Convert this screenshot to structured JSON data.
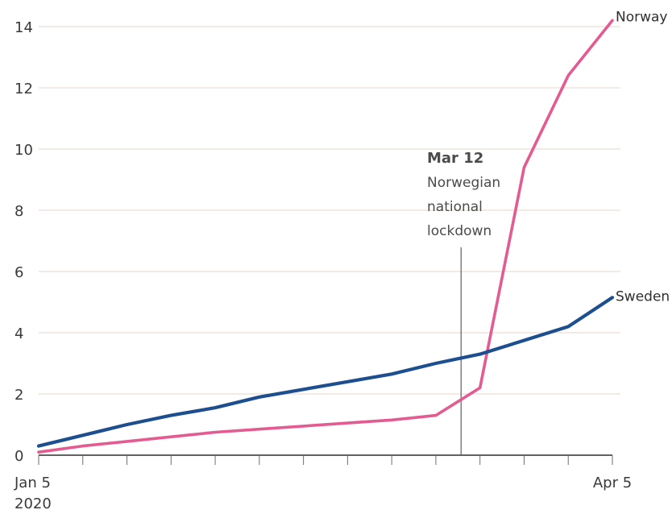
{
  "chart_data": {
    "type": "line",
    "x": [
      "2020-01-05",
      "2020-01-12",
      "2020-01-19",
      "2020-01-26",
      "2020-02-02",
      "2020-02-09",
      "2020-02-16",
      "2020-02-23",
      "2020-03-01",
      "2020-03-08",
      "2020-03-15",
      "2020-03-22",
      "2020-03-29",
      "2020-04-05"
    ],
    "series": [
      {
        "name": "Norway",
        "color": "#e45b92",
        "values": [
          0.1,
          0.3,
          0.45,
          0.6,
          0.75,
          0.85,
          0.95,
          1.05,
          1.15,
          1.3,
          2.2,
          9.4,
          12.4,
          14.2
        ]
      },
      {
        "name": "Sweden",
        "color": "#1d4e8f",
        "values": [
          0.3,
          0.65,
          1.0,
          1.3,
          1.55,
          1.9,
          2.15,
          2.4,
          2.65,
          3.0,
          3.3,
          3.75,
          4.2,
          5.15
        ]
      }
    ],
    "ylim": [
      0,
      14.5
    ],
    "yticks": [
      "0",
      "2",
      "4",
      "6",
      "8",
      "10",
      "12",
      "14"
    ],
    "xtick_labels": {
      "start_line1": "Jan 5",
      "start_line2": "2020",
      "end": "Apr 5"
    },
    "annotation": {
      "date": "Mar 12",
      "line1": "Norwegian",
      "line2": "national",
      "line3": "lockdown",
      "x": "2020-03-12"
    },
    "grid": true,
    "legend": "inline",
    "title": "",
    "xlabel": "",
    "ylabel": ""
  }
}
